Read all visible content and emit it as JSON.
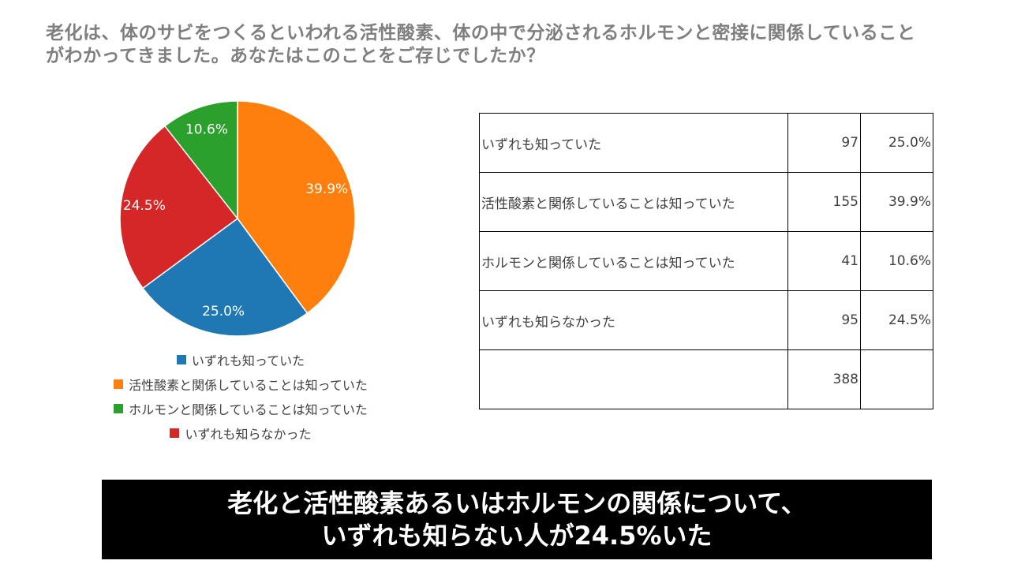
{
  "question": {
    "line1": "老化は、体のサビをつくるといわれる活性酸素、体の中で分泌されるホルモンと密接に関係していること",
    "line2": "がわかってきました。あなたはこのことをご存じでしたか？"
  },
  "chart_data": {
    "type": "pie",
    "categories": [
      "いずれも知っていた",
      "活性酸素と関係していることは知っていた",
      "ホルモンと関係していることは知っていた",
      "いずれも知らなかった"
    ],
    "values": [
      25.0,
      39.9,
      10.6,
      24.5
    ],
    "counts": [
      97,
      155,
      41,
      95
    ],
    "data_labels": [
      "25.0%",
      "39.9%",
      "10.6%",
      "24.5%"
    ],
    "colors": [
      "#1f77b4",
      "#ff7f0e",
      "#2ca02c",
      "#d62728"
    ],
    "draw_order": [
      1,
      0,
      3,
      2
    ],
    "legend_position": "bottom"
  },
  "table": {
    "rows": [
      {
        "label": "いずれも知っていた",
        "count": "97",
        "percent": "25.0%"
      },
      {
        "label": "活性酸素と関係していることは知っていた",
        "count": "155",
        "percent": "39.9%"
      },
      {
        "label": "ホルモンと関係していることは知っていた",
        "count": "41",
        "percent": "10.6%"
      },
      {
        "label": "いずれも知らなかった",
        "count": "95",
        "percent": "24.5%"
      },
      {
        "label": "",
        "count": "388",
        "percent": ""
      }
    ]
  },
  "banner": {
    "line1": "老化と活性酸素あるいはホルモンの関係について、",
    "line2": "いずれも知らない人が24.5%いた"
  }
}
